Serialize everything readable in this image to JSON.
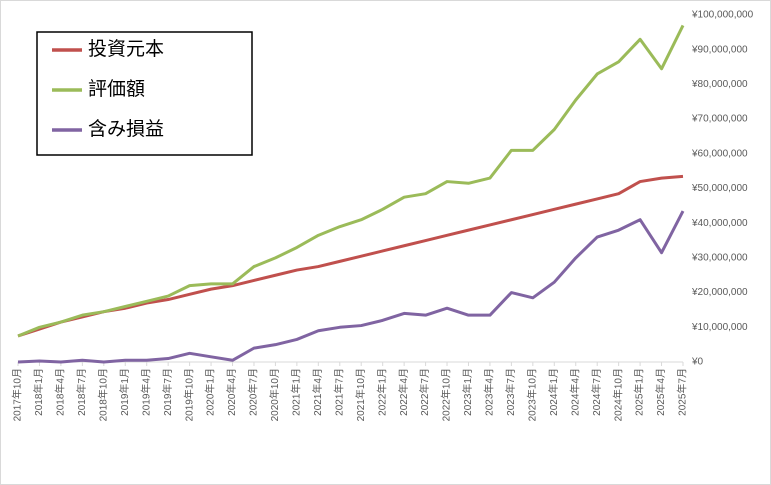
{
  "chart_data": {
    "type": "line",
    "categories": [
      "2017年10月",
      "2018年1月",
      "2018年4月",
      "2018年7月",
      "2018年10月",
      "2019年1月",
      "2019年4月",
      "2019年7月",
      "2019年10月",
      "2020年1月",
      "2020年4月",
      "2020年7月",
      "2020年10月",
      "2021年1月",
      "2021年4月",
      "2021年7月",
      "2021年10月",
      "2022年1月",
      "2022年4月",
      "2022年7月",
      "2022年10月",
      "2023年1月",
      "2023年4月",
      "2023年7月",
      "2023年10月",
      "2024年1月",
      "2024年4月",
      "2024年7月",
      "2024年10月",
      "2025年1月",
      "2025年4月",
      "2025年7月"
    ],
    "series": [
      {
        "name": "投資元本",
        "color": "#c0504d",
        "values": [
          7500000,
          9500000,
          11500000,
          13000000,
          14500000,
          15500000,
          17000000,
          18000000,
          19500000,
          21000000,
          22000000,
          23500000,
          25000000,
          26500000,
          27500000,
          29000000,
          30500000,
          32000000,
          33500000,
          35000000,
          36500000,
          38000000,
          39500000,
          41000000,
          42500000,
          44000000,
          45500000,
          47000000,
          48500000,
          52000000,
          53000000,
          53500000
        ]
      },
      {
        "name": "評価額",
        "color": "#9bbb59",
        "values": [
          7500000,
          10000000,
          11500000,
          13500000,
          14500000,
          16000000,
          17500000,
          19000000,
          22000000,
          22500000,
          22500000,
          27500000,
          30000000,
          33000000,
          36500000,
          39000000,
          41000000,
          44000000,
          47500000,
          48500000,
          52000000,
          51500000,
          53000000,
          61000000,
          61000000,
          67000000,
          75500000,
          83000000,
          86500000,
          93000000,
          84500000,
          97000000
        ]
      },
      {
        "name": "含み損益",
        "color": "#8064a2",
        "values": [
          0,
          300000,
          0,
          500000,
          0,
          500000,
          500000,
          1000000,
          2500000,
          1500000,
          500000,
          4000000,
          5000000,
          6500000,
          9000000,
          10000000,
          10500000,
          12000000,
          14000000,
          13500000,
          15500000,
          13500000,
          13500000,
          20000000,
          18500000,
          23000000,
          30000000,
          36000000,
          38000000,
          41000000,
          31500000,
          43500000
        ]
      }
    ],
    "ylim": [
      0,
      100000000
    ],
    "yticks": [
      {
        "value": 0,
        "label": "¥0"
      },
      {
        "value": 10000000,
        "label": "¥10,000,000"
      },
      {
        "value": 20000000,
        "label": "¥20,000,000"
      },
      {
        "value": 30000000,
        "label": "¥30,000,000"
      },
      {
        "value": 40000000,
        "label": "¥40,000,000"
      },
      {
        "value": 50000000,
        "label": "¥50,000,000"
      },
      {
        "value": 60000000,
        "label": "¥60,000,000"
      },
      {
        "value": 70000000,
        "label": "¥70,000,000"
      },
      {
        "value": 80000000,
        "label": "¥80,000,000"
      },
      {
        "value": 90000000,
        "label": "¥90,000,000"
      },
      {
        "value": 100000000,
        "label": "¥100,000,000"
      }
    ],
    "legend": "upper-left"
  }
}
